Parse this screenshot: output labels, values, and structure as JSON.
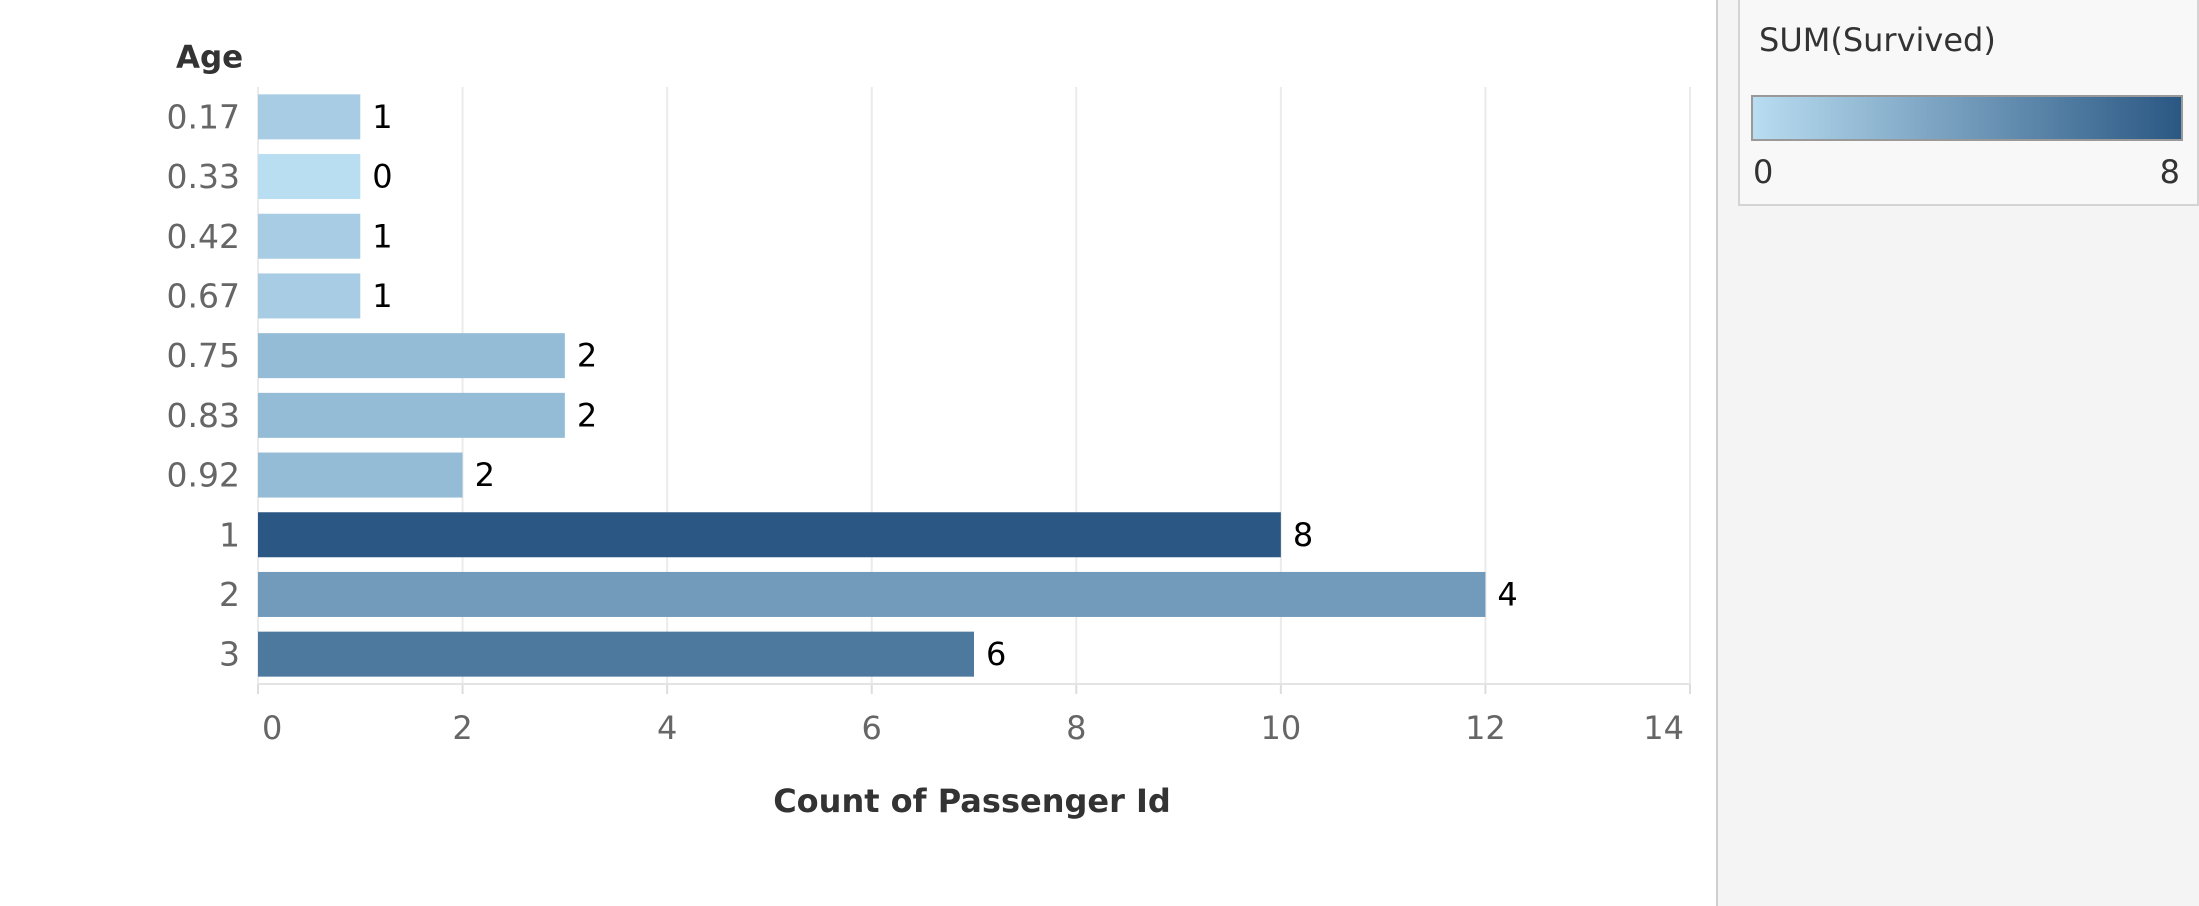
{
  "chart_data": {
    "type": "bar",
    "orientation": "horizontal",
    "y_label": "Age",
    "x_label": "Count of Passenger Id",
    "categories": [
      "0.17",
      "0.33",
      "0.42",
      "0.67",
      "0.75",
      "0.83",
      "0.92",
      "1",
      "2",
      "3"
    ],
    "values": [
      1,
      1,
      1,
      1,
      3,
      3,
      2,
      10,
      12,
      7
    ],
    "color_values": [
      1,
      0,
      1,
      1,
      2,
      2,
      2,
      8,
      4,
      6
    ],
    "color_label": "SUM(Survived)",
    "color_lim": [
      0,
      8
    ],
    "color_range": [
      "#b9ddf1",
      "#2a5783"
    ],
    "xlim": [
      0,
      14
    ],
    "xticks": [
      0,
      2,
      4,
      6,
      8,
      10,
      12,
      14
    ],
    "grid": true
  }
}
